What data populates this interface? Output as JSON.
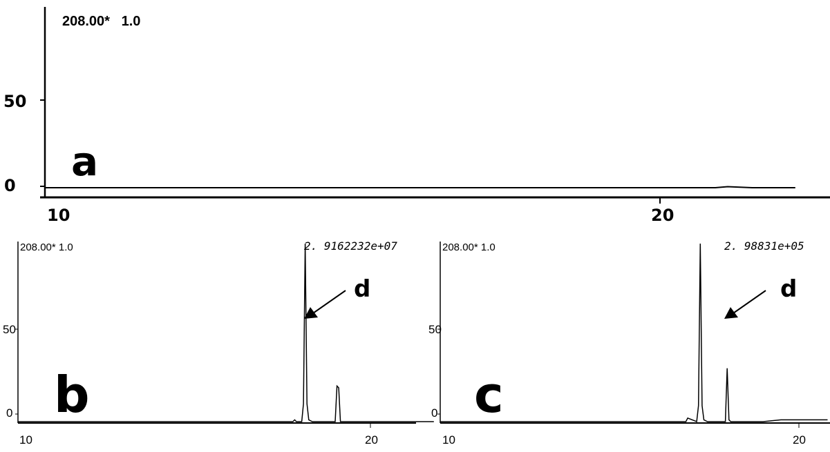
{
  "chart_data": [
    {
      "panel": "a",
      "type": "line",
      "mass_label": "208.00*   1.0",
      "xlim": [
        10,
        22.2
      ],
      "ylim": [
        0,
        100
      ],
      "x_ticks": [
        "10",
        "20"
      ],
      "y_ticks": [
        "0",
        "50"
      ],
      "series": [
        {
          "x": [
            10,
            11,
            12,
            13,
            14,
            15,
            16,
            17,
            18,
            19,
            20,
            20.9,
            21.1,
            21.5,
            22.2
          ],
          "y": [
            0,
            0,
            0,
            0,
            0,
            0,
            0,
            0,
            0,
            0,
            0,
            0,
            0.6,
            0,
            0
          ]
        }
      ],
      "annotations": []
    },
    {
      "panel": "b",
      "type": "line",
      "mass_label": "208.00* 1.0",
      "peak_label": "2. 9162232e+07",
      "xlim": [
        10,
        21.8
      ],
      "ylim": [
        0,
        100
      ],
      "x_ticks": [
        "10",
        "20"
      ],
      "y_ticks": [
        "0",
        "50"
      ],
      "series": [
        {
          "x": [
            10,
            17,
            17.8,
            17.85,
            17.9,
            18.05,
            18.1,
            18.15,
            18.2,
            18.25,
            18.35,
            19,
            19.05,
            19.1,
            19.15,
            19.2,
            20,
            21.8
          ],
          "y": [
            0,
            0,
            0,
            1,
            0,
            0,
            10,
            100,
            10,
            1,
            0,
            0,
            20,
            19,
            0,
            0,
            0,
            0
          ]
        }
      ],
      "annotations": [
        {
          "label": "d",
          "x": 18.2,
          "y": 58
        }
      ]
    },
    {
      "panel": "c",
      "type": "line",
      "mass_label": "208.00* 1.0",
      "peak_label": "2. 98831e+05",
      "xlim": [
        10,
        20.8
      ],
      "ylim": [
        0,
        100
      ],
      "x_ticks": [
        "10",
        "20"
      ],
      "y_ticks": [
        "0",
        "50"
      ],
      "series": [
        {
          "x": [
            10,
            16.5,
            16.85,
            16.9,
            17.15,
            17.2,
            17.25,
            17.3,
            17.35,
            17.45,
            17.95,
            18,
            18.05,
            18.1,
            19,
            19.5,
            20,
            20.5,
            20.8
          ],
          "y": [
            0,
            0,
            0,
            2,
            0,
            9,
            100,
            9,
            1,
            0,
            0,
            30,
            1,
            0,
            0,
            1,
            1,
            1,
            1
          ]
        }
      ],
      "annotations": [
        {
          "label": "d",
          "x": 17.25,
          "y": 58
        }
      ]
    }
  ],
  "panel_letters": [
    "a",
    "b",
    "c"
  ]
}
